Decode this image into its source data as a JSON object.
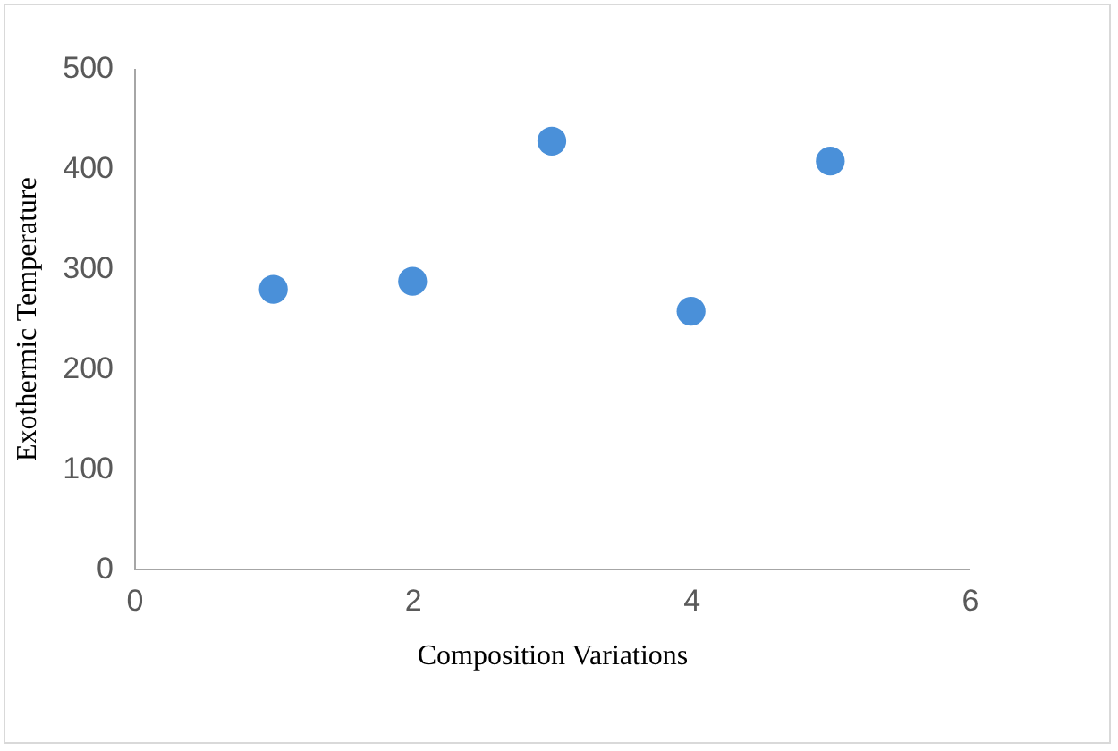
{
  "chart_data": {
    "type": "scatter",
    "xlabel": "Composition Variations",
    "ylabel": "Exothermic Temperature",
    "x": [
      1,
      2,
      3,
      4,
      5
    ],
    "series": [
      {
        "color": "#4a90d9",
        "values": [
          279,
          287,
          427,
          257,
          407
        ]
      }
    ],
    "xlim": [
      0,
      6
    ],
    "xticks": [
      0,
      2,
      4,
      6
    ],
    "ylim": [
      0,
      500
    ],
    "yticks": [
      0,
      100,
      200,
      300,
      400,
      500
    ],
    "grid": false,
    "legend": false,
    "marker": "circle"
  }
}
